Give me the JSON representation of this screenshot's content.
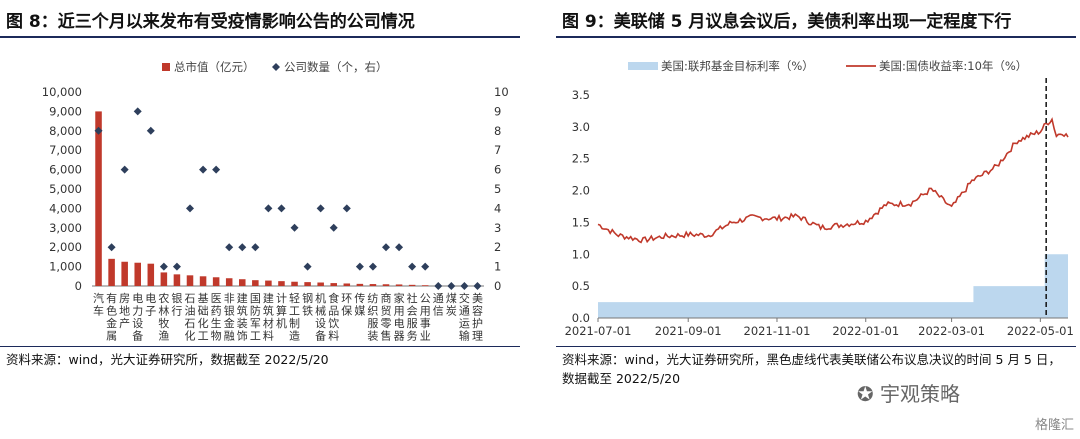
{
  "left": {
    "title": "图 8：近三个月以来发布有受疫情影响公告的公司情况",
    "source": "资料来源：wind，光大证券研究所，数据截至 2022/5/20",
    "chart_data": {
      "type": "bar",
      "legend": {
        "bar": "总市值（亿元）",
        "scatter": "公司数量（个，右）",
        "position": "top"
      },
      "categories": [
        "汽车",
        "有色金属",
        "房地产",
        "电力设备",
        "电子",
        "农林牧渔",
        "银行",
        "石油石化",
        "基础化工",
        "医药生物",
        "非银金融",
        "建筑装饰",
        "国防军工",
        "建筑材料",
        "计算机",
        "轻工制造",
        "钢铁",
        "机械设备",
        "食品饮料",
        "环保",
        "传媒",
        "纺织服装",
        "商贸零售",
        "家用电器",
        "社会服务",
        "公用事业",
        "通信",
        "煤炭",
        "交通运输",
        "美容护理"
      ],
      "series": [
        {
          "name": "总市值（亿元）",
          "type": "bar",
          "axis": "left",
          "values": [
            9000,
            1400,
            1250,
            1200,
            1150,
            700,
            600,
            550,
            500,
            450,
            400,
            350,
            300,
            280,
            250,
            220,
            200,
            180,
            150,
            130,
            110,
            100,
            90,
            80,
            60,
            40,
            30,
            20,
            15,
            10
          ]
        },
        {
          "name": "公司数量（个，右）",
          "type": "scatter",
          "axis": "right",
          "values": [
            8,
            2,
            6,
            9,
            8,
            1,
            1,
            4,
            6,
            6,
            2,
            2,
            2,
            4,
            4,
            3,
            1,
            4,
            3,
            4,
            1,
            1,
            2,
            2,
            1,
            1,
            0,
            0,
            0,
            0
          ]
        }
      ],
      "yleft": {
        "min": 0,
        "max": 10000,
        "ticks": [
          "0",
          "1,000",
          "2,000",
          "3,000",
          "4,000",
          "5,000",
          "6,000",
          "7,000",
          "8,000",
          "9,000",
          "10,000"
        ]
      },
      "yright": {
        "min": 0,
        "max": 10,
        "ticks": [
          "0",
          "1",
          "2",
          "3",
          "4",
          "5",
          "6",
          "7",
          "8",
          "9",
          "10"
        ]
      },
      "colors": {
        "bar": "#c0392b",
        "scatter": "#2e3f5c"
      }
    }
  },
  "right": {
    "title": "图 9：美联储 5 月议息会议后，美债利率出现一定程度下行",
    "source1": "资料来源：wind，光大证券研究所，黑色虚线代表美联储公布议息决议的时间 5 月 5 日，",
    "source2": "数据截至 2022/5/20",
    "chart_data": {
      "type": "line",
      "legend": {
        "area": "美国:联邦基金目标利率（%）",
        "line": "美国:国债收益率:10年（%）",
        "position": "top"
      },
      "xticks": [
        "2021-07-01",
        "2021-09-01",
        "2021-11-01",
        "2022-01-01",
        "2022-03-01",
        "2022-05-01"
      ],
      "xrange": [
        "2021-07-01",
        "2022-05-20"
      ],
      "ylim": [
        0,
        3.5
      ],
      "yticks": [
        "0.0",
        "0.5",
        "1.0",
        "1.5",
        "2.0",
        "2.5",
        "3.0",
        "3.5"
      ],
      "fed_rate": [
        {
          "date": "2021-07-01",
          "value": 0.25
        },
        {
          "date": "2022-03-16",
          "value": 0.5
        },
        {
          "date": "2022-05-04",
          "value": 1.0
        },
        {
          "date": "2022-05-20",
          "value": 1.0
        }
      ],
      "treasury_10y": [
        {
          "date": "2021-07-01",
          "value": 1.47
        },
        {
          "date": "2021-07-15",
          "value": 1.3
        },
        {
          "date": "2021-08-01",
          "value": 1.22
        },
        {
          "date": "2021-08-15",
          "value": 1.28
        },
        {
          "date": "2021-09-01",
          "value": 1.31
        },
        {
          "date": "2021-09-15",
          "value": 1.3
        },
        {
          "date": "2021-10-01",
          "value": 1.5
        },
        {
          "date": "2021-10-15",
          "value": 1.58
        },
        {
          "date": "2021-11-01",
          "value": 1.56
        },
        {
          "date": "2021-11-15",
          "value": 1.6
        },
        {
          "date": "2021-12-01",
          "value": 1.42
        },
        {
          "date": "2021-12-15",
          "value": 1.46
        },
        {
          "date": "2022-01-01",
          "value": 1.52
        },
        {
          "date": "2022-01-15",
          "value": 1.78
        },
        {
          "date": "2022-02-01",
          "value": 1.8
        },
        {
          "date": "2022-02-15",
          "value": 2.02
        },
        {
          "date": "2022-03-01",
          "value": 1.73
        },
        {
          "date": "2022-03-15",
          "value": 2.15
        },
        {
          "date": "2022-04-01",
          "value": 2.38
        },
        {
          "date": "2022-04-15",
          "value": 2.78
        },
        {
          "date": "2022-05-01",
          "value": 2.93
        },
        {
          "date": "2022-05-05",
          "value": 3.05
        },
        {
          "date": "2022-05-09",
          "value": 3.12
        },
        {
          "date": "2022-05-12",
          "value": 2.86
        },
        {
          "date": "2022-05-16",
          "value": 2.92
        },
        {
          "date": "2022-05-20",
          "value": 2.84
        }
      ],
      "vline_date": "2022-05-05",
      "colors": {
        "line": "#c0392b",
        "area": "#bcd7ee",
        "vline": "#111111"
      }
    }
  },
  "watermark": {
    "text1": "宇观策略",
    "text2": "格隆汇"
  }
}
